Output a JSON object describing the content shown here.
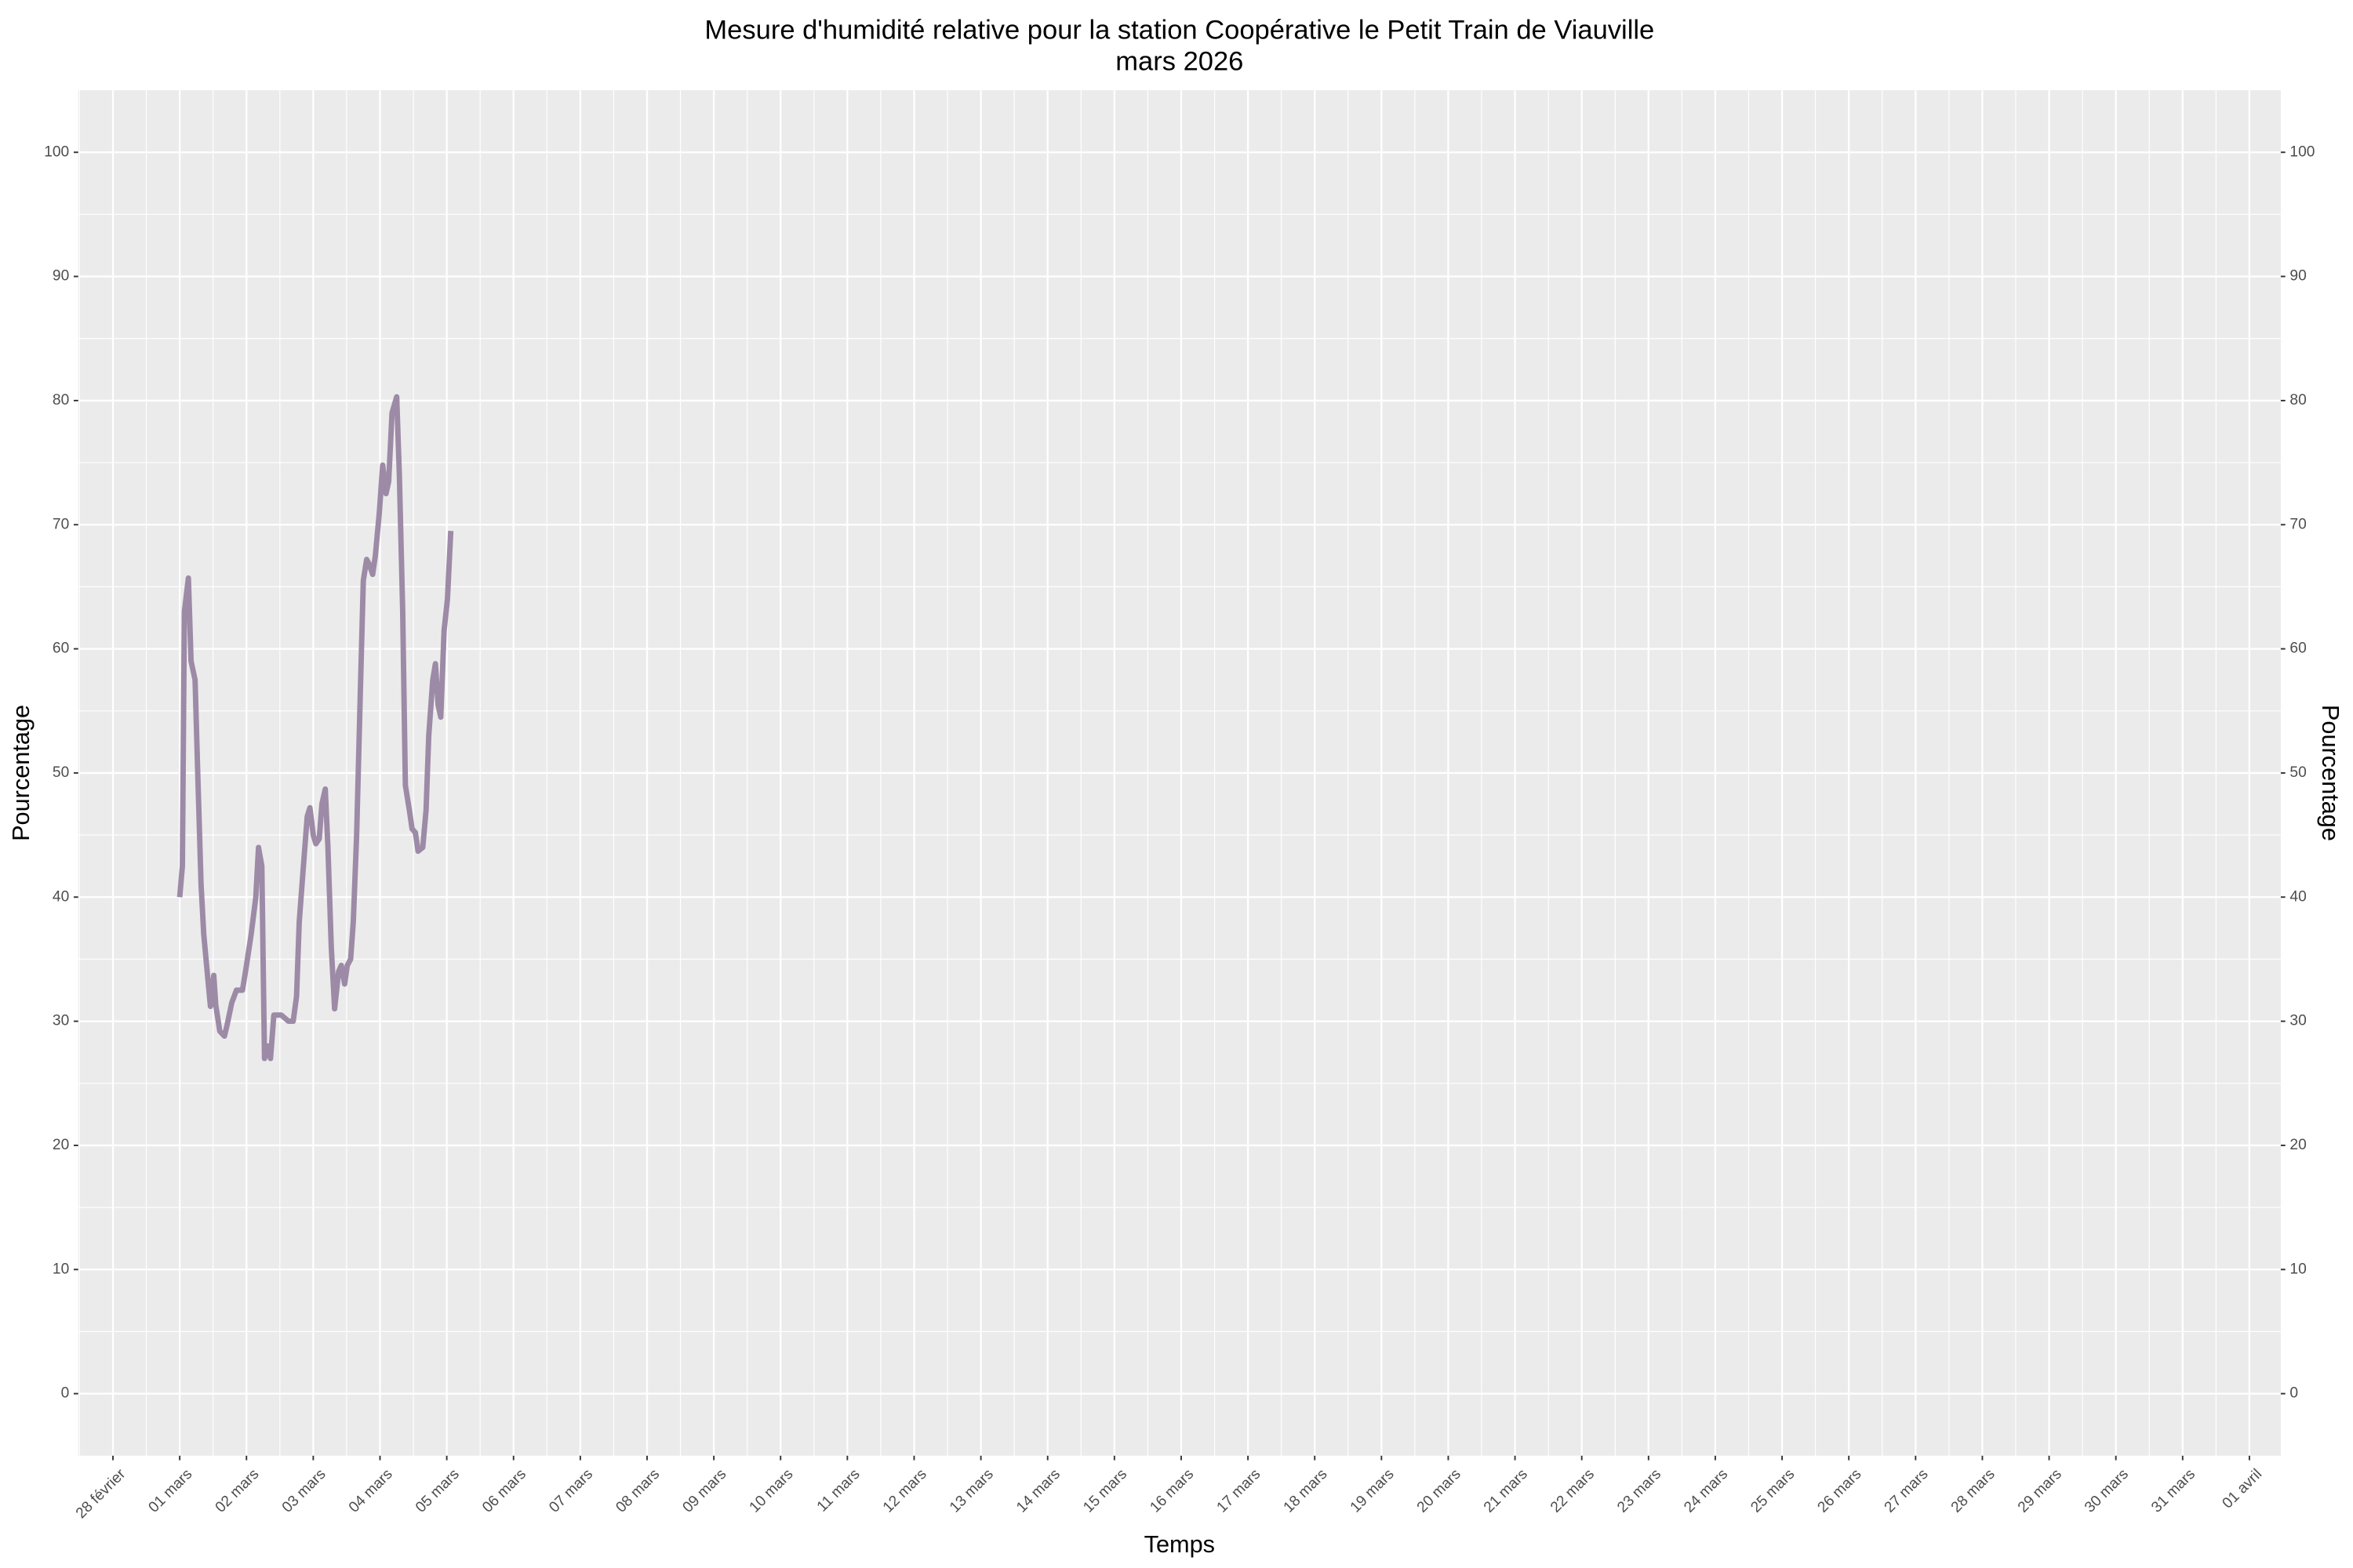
{
  "chart_data": {
    "type": "line",
    "title": "Mesure d'humidité relative pour la station Coopérative le Petit Train de Viauville",
    "subtitle": "mars 2026",
    "x_label": "Temps",
    "y_label": "Pourcentage",
    "xlim": [
      -1.52,
      31.47
    ],
    "ylim": [
      -5,
      105
    ],
    "xticks": [
      {
        "value": -1,
        "label": "28 février"
      },
      {
        "value": 0,
        "label": "01 mars"
      },
      {
        "value": 1,
        "label": "02 mars"
      },
      {
        "value": 2,
        "label": "03 mars"
      },
      {
        "value": 3,
        "label": "04 mars"
      },
      {
        "value": 4,
        "label": "05 mars"
      },
      {
        "value": 5,
        "label": "06 mars"
      },
      {
        "value": 6,
        "label": "07 mars"
      },
      {
        "value": 7,
        "label": "08 mars"
      },
      {
        "value": 8,
        "label": "09 mars"
      },
      {
        "value": 9,
        "label": "10 mars"
      },
      {
        "value": 10,
        "label": "11 mars"
      },
      {
        "value": 11,
        "label": "12 mars"
      },
      {
        "value": 12,
        "label": "13 mars"
      },
      {
        "value": 13,
        "label": "14 mars"
      },
      {
        "value": 14,
        "label": "15 mars"
      },
      {
        "value": 15,
        "label": "16 mars"
      },
      {
        "value": 16,
        "label": "17 mars"
      },
      {
        "value": 17,
        "label": "18 mars"
      },
      {
        "value": 18,
        "label": "19 mars"
      },
      {
        "value": 19,
        "label": "20 mars"
      },
      {
        "value": 20,
        "label": "21 mars"
      },
      {
        "value": 21,
        "label": "22 mars"
      },
      {
        "value": 22,
        "label": "23 mars"
      },
      {
        "value": 23,
        "label": "24 mars"
      },
      {
        "value": 24,
        "label": "25 mars"
      },
      {
        "value": 25,
        "label": "26 mars"
      },
      {
        "value": 26,
        "label": "27 mars"
      },
      {
        "value": 27,
        "label": "28 mars"
      },
      {
        "value": 28,
        "label": "29 mars"
      },
      {
        "value": 29,
        "label": "30 mars"
      },
      {
        "value": 30,
        "label": "31 mars"
      },
      {
        "value": 31,
        "label": "01 avril"
      }
    ],
    "yticks": [
      0,
      10,
      20,
      30,
      40,
      50,
      60,
      70,
      80,
      90,
      100
    ],
    "y_minor_ticks": [
      5,
      15,
      25,
      35,
      45,
      55,
      65,
      75,
      85,
      95
    ],
    "x_minor_ticks": [
      -1.5,
      -0.5,
      0.5,
      1.5,
      2.5,
      3.5,
      4.5,
      5.5,
      6.5,
      7.5,
      8.5,
      9.5,
      10.5,
      11.5,
      12.5,
      13.5,
      14.5,
      15.5,
      16.5,
      17.5,
      18.5,
      19.5,
      20.5,
      21.5,
      22.5,
      23.5,
      24.5,
      25.5,
      26.5,
      27.5,
      28.5,
      29.5,
      30.5
    ],
    "grid": true,
    "secondary_axis": true,
    "series": [
      {
        "color": "#9c8aa6",
        "x": [
          0.0,
          0.04,
          0.07,
          0.13,
          0.17,
          0.23,
          0.27,
          0.32,
          0.36,
          0.42,
          0.46,
          0.51,
          0.54,
          0.6,
          0.67,
          0.71,
          0.78,
          0.85,
          0.94,
          1.0,
          1.07,
          1.14,
          1.18,
          1.23,
          1.27,
          1.32,
          1.36,
          1.41,
          1.52,
          1.63,
          1.7,
          1.75,
          1.79,
          1.86,
          1.91,
          1.95,
          2.0,
          2.04,
          2.09,
          2.13,
          2.18,
          2.22,
          2.27,
          2.32,
          2.38,
          2.42,
          2.47,
          2.51,
          2.56,
          2.6,
          2.65,
          2.71,
          2.75,
          2.8,
          2.84,
          2.89,
          2.93,
          2.99,
          3.04,
          3.09,
          3.13,
          3.18,
          3.25,
          3.29,
          3.34,
          3.38,
          3.44,
          3.48,
          3.53,
          3.57,
          3.64,
          3.69,
          3.73,
          3.79,
          3.83,
          3.87,
          3.91,
          3.96,
          4.01,
          4.06
        ],
        "values": [
          40,
          42.5,
          63,
          65.7,
          59,
          57.5,
          50,
          41,
          37,
          33.5,
          31.2,
          33.7,
          31.3,
          29.2,
          28.8,
          29.7,
          31.5,
          32.5,
          32.5,
          34.5,
          37,
          40,
          44,
          42.5,
          27,
          28,
          27,
          30.5,
          30.5,
          30,
          30,
          32,
          38,
          43,
          46.5,
          47.2,
          45,
          44.3,
          44.7,
          47.5,
          48.7,
          44,
          36,
          31,
          34,
          34.5,
          33,
          34.5,
          35,
          38,
          45,
          57.5,
          65.5,
          67.2,
          66.8,
          66,
          67.5,
          71,
          74.8,
          72.5,
          73.5,
          79,
          80.3,
          74,
          63,
          49,
          47,
          45.5,
          45.2,
          43.7,
          44,
          47,
          53,
          57.5,
          58.8,
          55.5,
          54.5,
          61.5,
          64,
          69.5
        ]
      }
    ]
  }
}
